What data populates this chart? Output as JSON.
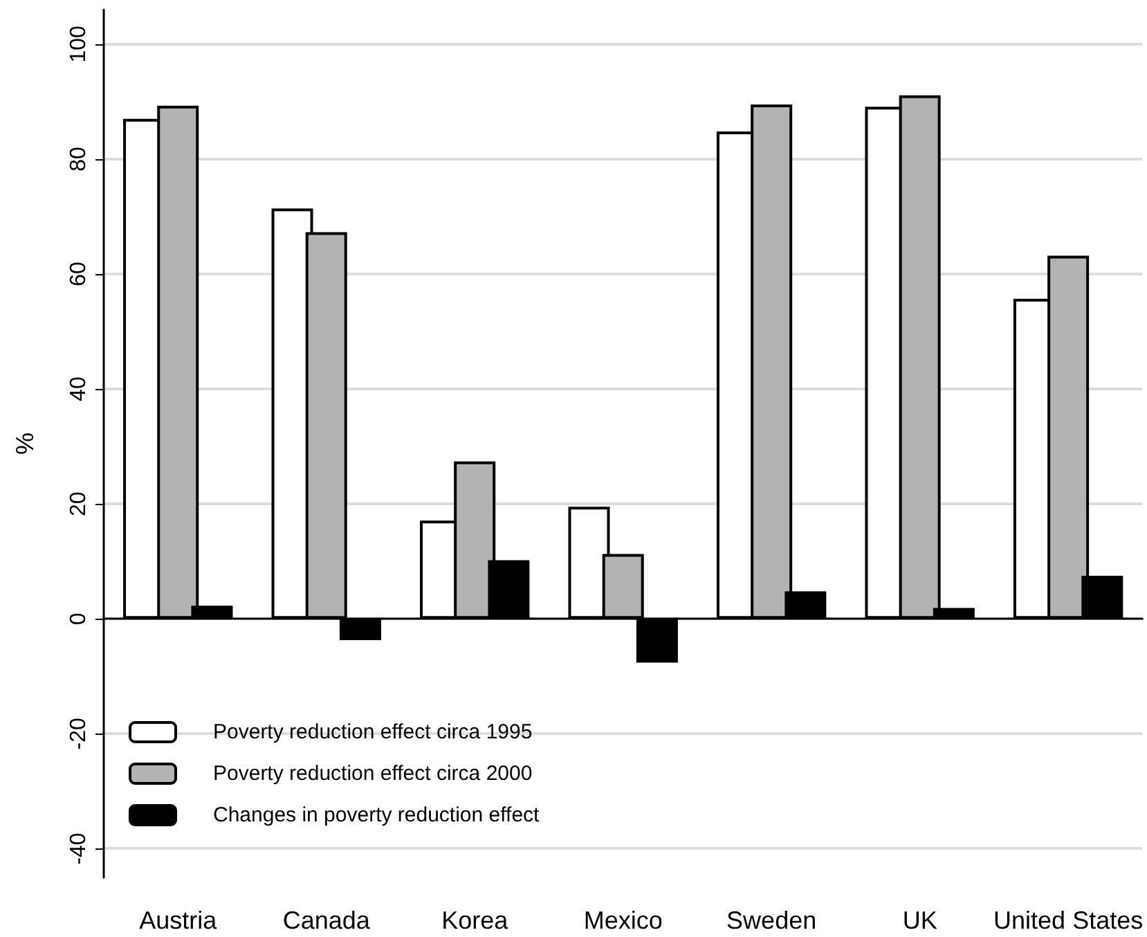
{
  "chart_data": {
    "type": "bar",
    "ylabel": "%",
    "categories": [
      "Austria",
      "Canada",
      "Korea",
      "Mexico",
      "Sweden",
      "UK",
      "United States"
    ],
    "series": [
      {
        "name": "Poverty reduction effect circa 1995",
        "color": "#ffffff",
        "values": [
          87.0,
          71.4,
          17.1,
          19.5,
          84.8,
          89.1,
          55.7
        ]
      },
      {
        "name": "Poverty reduction effect circa 2000",
        "color": "#b3b3b3",
        "values": [
          89.3,
          67.3,
          27.4,
          11.3,
          89.5,
          91.1,
          63.2
        ]
      },
      {
        "name": "Changes in poverty reduction effect",
        "color": "#000000",
        "values": [
          2.3,
          -3.7,
          10.2,
          -7.6,
          4.8,
          1.9,
          7.5
        ]
      }
    ],
    "ylim": [
      -45,
      106
    ],
    "yticks": [
      -40,
      -20,
      0,
      20,
      40,
      60,
      80,
      100
    ],
    "grid": "y",
    "legend": "bottom left"
  }
}
